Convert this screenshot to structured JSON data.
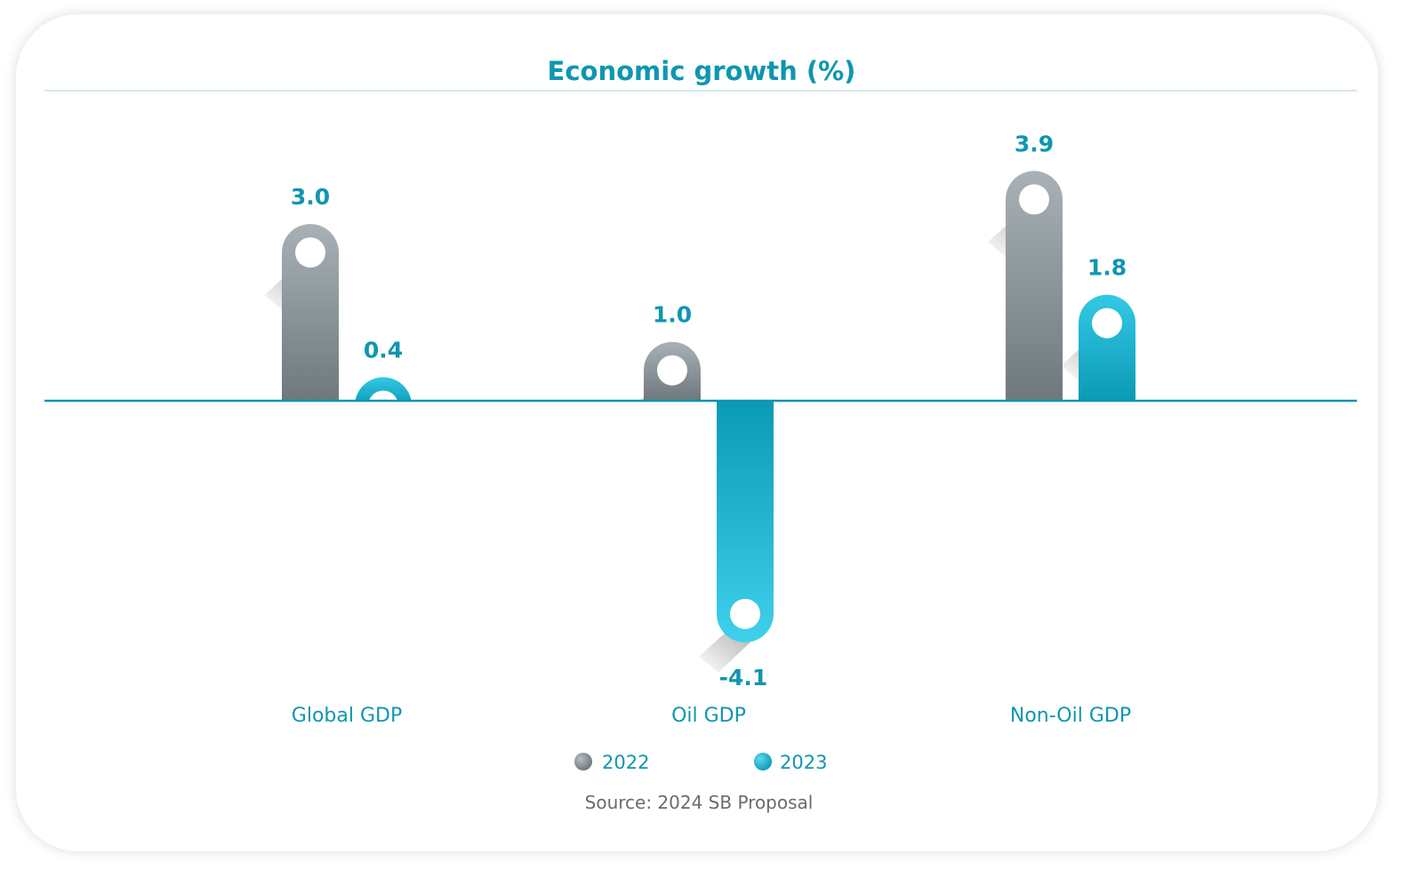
{
  "chart_data": {
    "type": "bar",
    "title": "Economic growth (%)",
    "categories": [
      "Global GDP",
      "Oil GDP",
      "Non-Oil GDP"
    ],
    "series": [
      {
        "name": "2022",
        "values": [
          3.0,
          1.0,
          3.9
        ],
        "color": "#7d878c"
      },
      {
        "name": "2023",
        "values": [
          0.4,
          -4.1,
          1.8
        ],
        "color": "#10a6c2"
      }
    ],
    "value_labels": [
      [
        "3.0",
        "1.0",
        "3.9"
      ],
      [
        "0.4",
        "-4.1",
        "1.8"
      ]
    ],
    "ylim": [
      -4.1,
      4.5
    ],
    "grid": false,
    "legend": "bottom-center",
    "source": "Source: 2024 SB Proposal"
  },
  "colors": {
    "accent": "#0f96b0",
    "axis": "#1393b0",
    "title_rule": "#d7e7ea",
    "source_text": "#6b6b6b"
  }
}
